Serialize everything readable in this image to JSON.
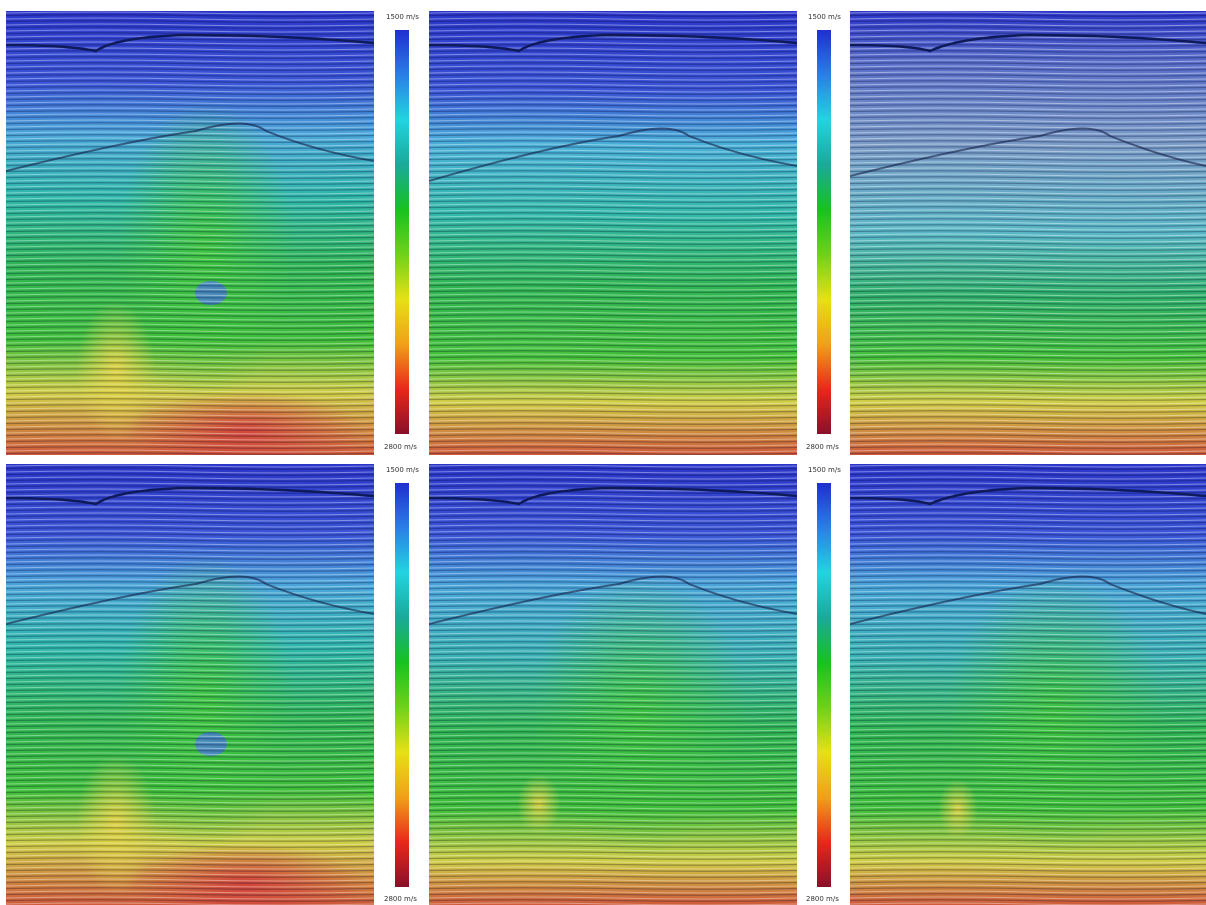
{
  "colorbars": [
    {
      "top_label": "1500 m/s",
      "bottom_label": "2800 m/s"
    },
    {
      "top_label": "1500 m/s",
      "bottom_label": "2800 m/s"
    },
    {
      "top_label": "1500 m/s",
      "bottom_label": "2800 m/s"
    },
    {
      "top_label": "1500 m/s",
      "bottom_label": "2800 m/s"
    }
  ],
  "colors": {
    "velocity_scale": [
      "#1f2fcf",
      "#2a7fe6",
      "#22d4e0",
      "#1aa99a",
      "#17c21f",
      "#6fd11a",
      "#e6e016",
      "#f0a019",
      "#e8281a",
      "#8a0f2a"
    ]
  },
  "panels": [
    {
      "row": 1,
      "col": 1,
      "variant": "a"
    },
    {
      "row": 1,
      "col": 2,
      "variant": "b"
    },
    {
      "row": 1,
      "col": 3,
      "variant": "c"
    },
    {
      "row": 2,
      "col": 1,
      "variant": "a"
    },
    {
      "row": 2,
      "col": 2,
      "variant": "d"
    },
    {
      "row": 2,
      "col": 3,
      "variant": "d"
    }
  ]
}
